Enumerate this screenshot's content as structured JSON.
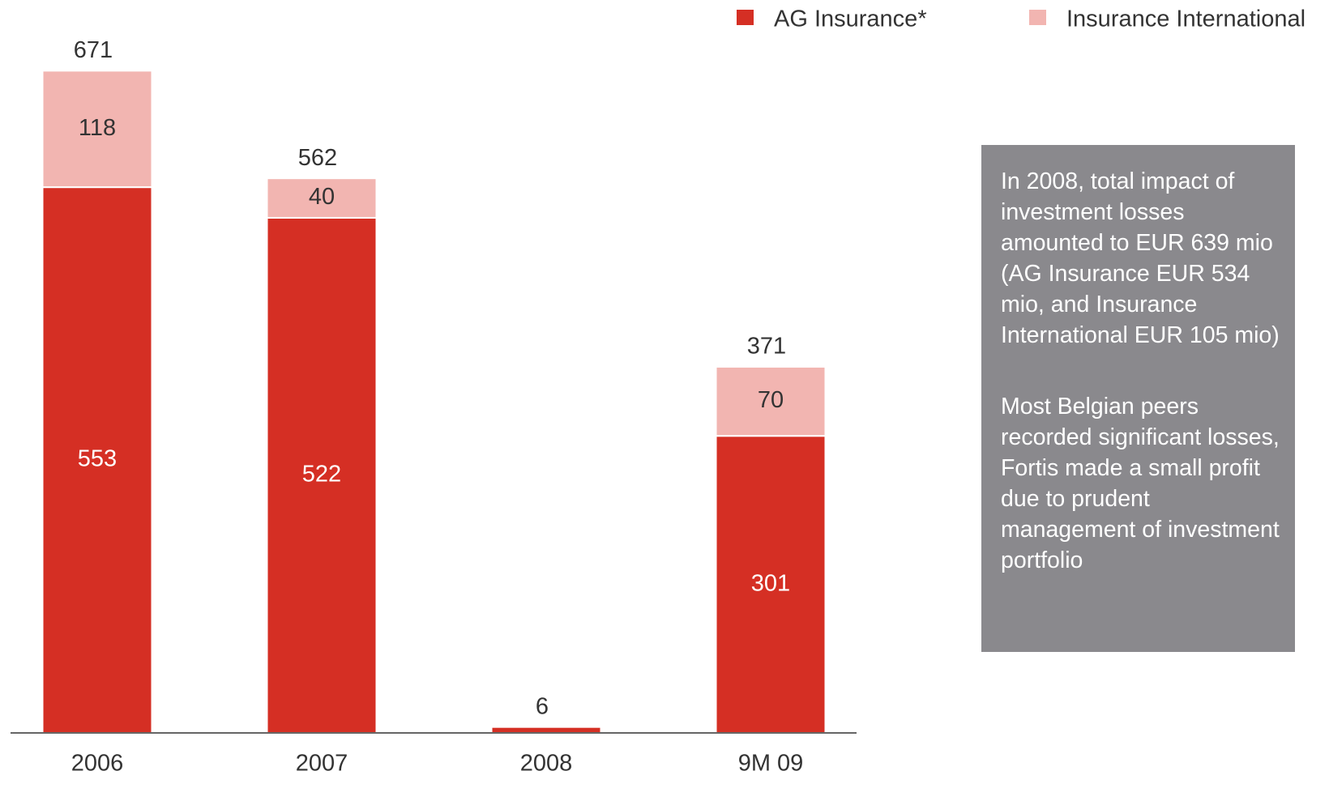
{
  "chart_data": {
    "type": "stacked-bar",
    "categories": [
      "2006",
      "2007",
      "2008",
      "9M 09"
    ],
    "series": [
      {
        "name": "AG Insurance*",
        "color": "#d52f24",
        "values": [
          553,
          522,
          6,
          301
        ]
      },
      {
        "name": "Insurance International",
        "color": "#f2b5b1",
        "values": [
          118,
          40,
          null,
          70
        ]
      }
    ],
    "totals": [
      671,
      562,
      6,
      371
    ],
    "ylim": [
      0,
      700
    ],
    "legend": "top-right",
    "note": [
      "In 2008, total impact of investment losses amounted to EUR 639 mio (AG Insurance EUR 534 mio, and Insurance International EUR 105 mio)",
      "Most Belgian peers recorded significant losses, Fortis made a small profit due to prudent management of investment portfolio"
    ]
  }
}
